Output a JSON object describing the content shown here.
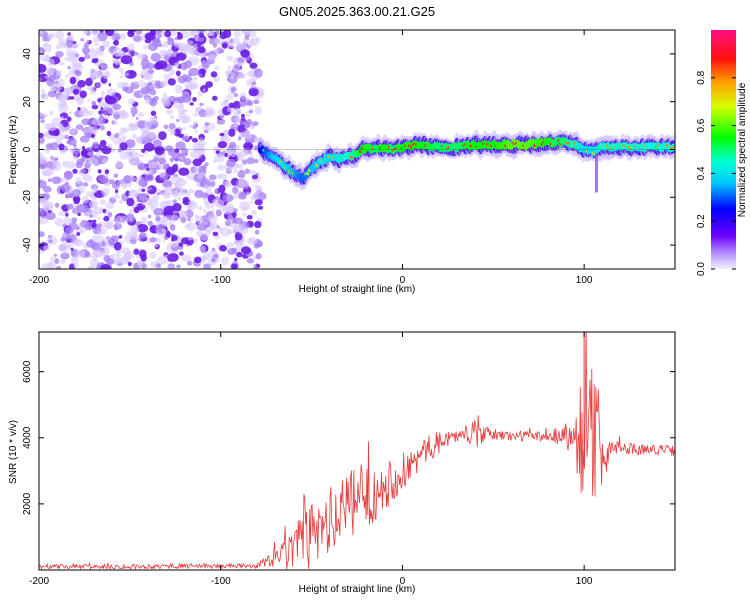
{
  "title": "GN05.2025.363.00.21.G25",
  "chart_data": [
    {
      "type": "heatmap",
      "title": "GN05.2025.363.00.21.G25",
      "xlabel": "Height of straight line (km)",
      "ylabel": "Frequency (Hz)",
      "xlim": [
        -200,
        150
      ],
      "ylim": [
        -50,
        50
      ],
      "x_ticks": [
        -200,
        -100,
        0,
        100
      ],
      "y_ticks": [
        -40,
        -20,
        0,
        20,
        40
      ],
      "colorbar": {
        "label": "Normalized spectral amplitude",
        "range": [
          0,
          1
        ],
        "ticks": [
          "0.0",
          "0.2",
          "0.4",
          "0.6",
          "0.8"
        ],
        "tick_values": [
          0,
          0.2,
          0.4,
          0.6,
          0.8
        ]
      },
      "noise_region": {
        "x_start": -200,
        "x_end": -78
      },
      "ridge": {
        "x": [
          -78,
          -72,
          -66,
          -60,
          -55,
          -50,
          -45,
          -40,
          -35,
          -30,
          -25,
          -20,
          -15,
          -10,
          -5,
          0,
          10,
          20,
          30,
          40,
          50,
          60,
          70,
          80,
          85,
          90,
          95,
          100,
          105,
          110,
          120,
          130,
          140,
          150
        ],
        "freq": [
          0,
          -3,
          -6,
          -10,
          -12,
          -8,
          -5,
          -3,
          -4,
          -3,
          -2,
          1,
          0,
          1,
          0,
          1,
          2,
          1,
          1,
          2,
          2,
          2,
          2,
          3,
          3,
          3,
          2,
          0,
          -1,
          1,
          1,
          1,
          1,
          1
        ],
        "amplitude": [
          0.25,
          0.35,
          0.4,
          0.35,
          0.3,
          0.35,
          0.4,
          0.4,
          0.42,
          0.45,
          0.5,
          0.55,
          0.5,
          0.55,
          0.5,
          0.55,
          0.55,
          0.5,
          0.5,
          0.55,
          0.55,
          0.6,
          0.6,
          0.55,
          0.5,
          0.5,
          0.45,
          0.4,
          0.4,
          0.45,
          0.45,
          0.45,
          0.45,
          0.45
        ]
      }
    },
    {
      "type": "line",
      "xlabel": "Height of straight line (km)",
      "ylabel": "SNR (10 * v/v)",
      "xlim": [
        -200,
        150
      ],
      "ylim": [
        0,
        7200
      ],
      "x_ticks": [
        -200,
        -100,
        0,
        100
      ],
      "y_ticks": [
        2000,
        4000,
        6000
      ],
      "series": [
        {
          "name": "SNR",
          "color": "#e83a3a",
          "x": [
            -200,
            -160,
            -120,
            -80,
            -72,
            -65,
            -60,
            -55,
            -50,
            -45,
            -40,
            -35,
            -30,
            -25,
            -20,
            -15,
            -10,
            -5,
            0,
            5,
            10,
            15,
            20,
            25,
            30,
            35,
            40,
            45,
            50,
            60,
            70,
            80,
            90,
            95,
            100,
            105,
            110,
            115,
            120,
            130,
            140,
            150
          ],
          "mean": [
            100,
            100,
            120,
            120,
            300,
            450,
            600,
            800,
            1000,
            1200,
            1450,
            1700,
            1900,
            2050,
            2200,
            2400,
            2600,
            2750,
            2950,
            3200,
            3450,
            3700,
            3850,
            4000,
            4050,
            4100,
            4100,
            4100,
            4100,
            4050,
            4050,
            4050,
            4100,
            4050,
            4100,
            4000,
            3800,
            3700,
            3700,
            3650,
            3650,
            3600
          ],
          "spread": [
            70,
            70,
            70,
            70,
            250,
            500,
            700,
            900,
            1000,
            1000,
            1050,
            1100,
            1100,
            1050,
            1000,
            900,
            800,
            700,
            600,
            500,
            450,
            400,
            350,
            250,
            200,
            180,
            450,
            250,
            180,
            160,
            160,
            160,
            400,
            1000,
            2200,
            2200,
            1200,
            300,
            200,
            160,
            160,
            160
          ]
        }
      ],
      "peak_annotation": {
        "x": 100,
        "y": 7200
      }
    }
  ]
}
